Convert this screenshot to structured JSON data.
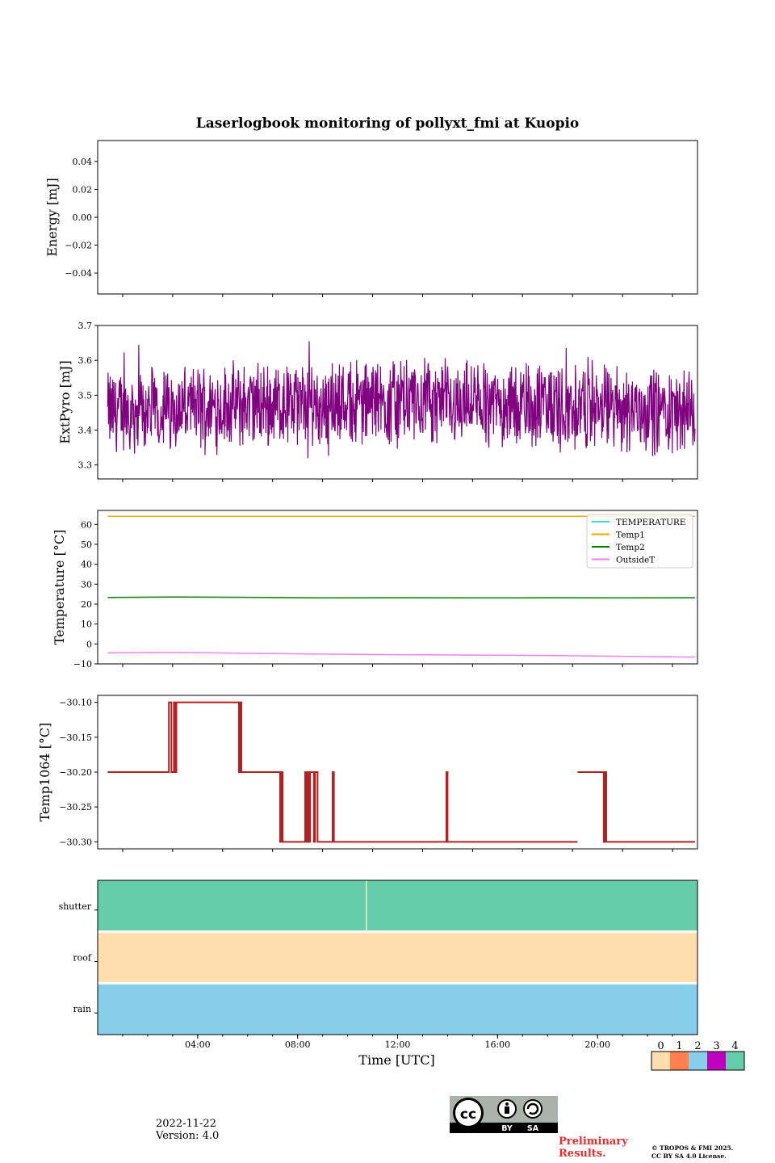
{
  "title": "Laserlogbook monitoring of pollyxt_fmi at Kuopio",
  "date": "2022-11-22",
  "version": "Version: 4.0",
  "preliminary": "Preliminary Results.",
  "copyright_line1": "© TROPOS & FMI 2025.",
  "copyright_line2": "CC BY SA 4.0 License.",
  "cc_badge": {
    "cc": "cc",
    "by": "BY",
    "sa": "SA"
  },
  "chart_data": [
    {
      "type": "line",
      "id": "energy",
      "ylabel": "Energy [mJ]",
      "ylim": [
        -0.055,
        0.055
      ],
      "yticks": [
        0.04,
        0.02,
        0.0,
        -0.02,
        -0.04
      ],
      "ytick_labels": [
        "0.04",
        "0.02",
        "0.00",
        "−0.02",
        "−0.04"
      ],
      "series": []
    },
    {
      "type": "line",
      "id": "extpyro",
      "ylabel": "ExtPyro [mJ]",
      "ylim": [
        3.26,
        3.7
      ],
      "yticks": [
        3.7,
        3.6,
        3.5,
        3.4,
        3.3
      ],
      "ytick_labels": [
        "3.7",
        "3.6",
        "3.5",
        "3.4",
        "3.3"
      ],
      "series": [
        {
          "name": "ExtPyro",
          "color": "#800080",
          "x_start_h": 0.4,
          "x_end_h": 23.9,
          "mean": 3.46,
          "range": [
            3.28,
            3.68
          ]
        }
      ]
    },
    {
      "type": "line",
      "id": "temperature",
      "ylabel": "Temperature [°C]",
      "ylim": [
        -10,
        67
      ],
      "yticks": [
        60,
        50,
        40,
        30,
        20,
        10,
        0,
        -10
      ],
      "ytick_labels": [
        "60",
        "50",
        "40",
        "30",
        "20",
        "10",
        "0",
        "−10"
      ],
      "legend": "top-right",
      "series": [
        {
          "name": "TEMPERATURE",
          "color": "#40e0d0",
          "x": [],
          "values": []
        },
        {
          "name": "Temp1",
          "color": "#ffa500",
          "x": [
            0.4,
            23.9
          ],
          "values": [
            64.1,
            64.1
          ]
        },
        {
          "name": "Temp2",
          "color": "#008000",
          "x": [
            0.4,
            3,
            6,
            9,
            12,
            15,
            18,
            21,
            23.9
          ],
          "values": [
            23.3,
            23.5,
            23.4,
            23.1,
            23.2,
            23.1,
            23.2,
            23.1,
            23.2
          ]
        },
        {
          "name": "OutsideT",
          "color": "#ee82ee",
          "x": [
            0.4,
            3,
            6,
            9,
            12,
            15,
            18,
            21,
            23.9
          ],
          "values": [
            -4.5,
            -4.2,
            -4.7,
            -5.1,
            -5.4,
            -5.6,
            -5.8,
            -6.2,
            -6.6
          ]
        }
      ]
    },
    {
      "type": "line",
      "id": "temp1064",
      "ylabel": "Temp1064 [°C]",
      "ylim": [
        -30.31,
        -30.09
      ],
      "yticks": [
        -30.1,
        -30.15,
        -30.2,
        -30.25,
        -30.3
      ],
      "ytick_labels": [
        "−30.10",
        "−30.15",
        "−30.20",
        "−30.25",
        "−30.30"
      ],
      "series": [
        {
          "name": "Temp1064",
          "color": "#b22222",
          "segments": [
            [
              [
                0.4,
                -30.2
              ],
              [
                2.85,
                -30.2
              ],
              [
                2.85,
                -30.1
              ],
              [
                2.95,
                -30.1
              ],
              [
                2.95,
                -30.2
              ],
              [
                3.05,
                -30.2
              ],
              [
                3.05,
                -30.1
              ],
              [
                3.1,
                -30.1
              ],
              [
                3.1,
                -30.2
              ],
              [
                3.15,
                -30.2
              ],
              [
                3.15,
                -30.1
              ],
              [
                5.65,
                -30.1
              ],
              [
                5.65,
                -30.2
              ],
              [
                5.7,
                -30.2
              ],
              [
                5.7,
                -30.1
              ],
              [
                5.75,
                -30.1
              ],
              [
                5.75,
                -30.2
              ],
              [
                7.3,
                -30.2
              ],
              [
                7.3,
                -30.3
              ],
              [
                7.35,
                -30.3
              ],
              [
                7.35,
                -30.2
              ],
              [
                7.4,
                -30.2
              ],
              [
                7.4,
                -30.3
              ],
              [
                8.3,
                -30.3
              ],
              [
                8.3,
                -30.2
              ],
              [
                8.35,
                -30.2
              ],
              [
                8.35,
                -30.3
              ],
              [
                8.4,
                -30.3
              ],
              [
                8.4,
                -30.2
              ],
              [
                8.45,
                -30.2
              ],
              [
                8.45,
                -30.3
              ],
              [
                8.5,
                -30.3
              ],
              [
                8.5,
                -30.2
              ],
              [
                8.65,
                -30.2
              ],
              [
                8.65,
                -30.3
              ],
              [
                8.7,
                -30.3
              ],
              [
                8.7,
                -30.2
              ],
              [
                8.8,
                -30.2
              ],
              [
                8.8,
                -30.3
              ],
              [
                9.4,
                -30.3
              ],
              [
                9.4,
                -30.2
              ],
              [
                9.45,
                -30.2
              ],
              [
                9.45,
                -30.3
              ],
              [
                13.95,
                -30.3
              ],
              [
                13.95,
                -30.2
              ],
              [
                14.0,
                -30.2
              ],
              [
                14.0,
                -30.3
              ],
              [
                19.2,
                -30.3
              ]
            ],
            [
              [
                19.2,
                -30.2
              ],
              [
                20.25,
                -30.2
              ],
              [
                20.25,
                -30.3
              ],
              [
                20.3,
                -30.3
              ],
              [
                20.3,
                -30.2
              ],
              [
                20.35,
                -30.2
              ],
              [
                20.35,
                -30.3
              ],
              [
                23.9,
                -30.3
              ]
            ]
          ]
        }
      ]
    },
    {
      "type": "heatmap",
      "id": "status",
      "rows": [
        "shutter",
        "roof",
        "rain"
      ],
      "row_values": [
        4,
        0,
        2
      ],
      "xlabel": "Time [UTC]",
      "xticks_h": [
        4,
        8,
        12,
        16,
        20
      ],
      "xtick_labels": [
        "04:00",
        "08:00",
        "12:00",
        "16:00",
        "20:00"
      ],
      "xlim_h": [
        0,
        24
      ],
      "gap_hour": 10.75,
      "colorbar": {
        "labels": [
          "0",
          "1",
          "2",
          "3",
          "4"
        ],
        "colors": [
          "#ffdead",
          "#ff7f50",
          "#87ceeb",
          "#c000c0",
          "#66cdaa"
        ]
      }
    }
  ]
}
